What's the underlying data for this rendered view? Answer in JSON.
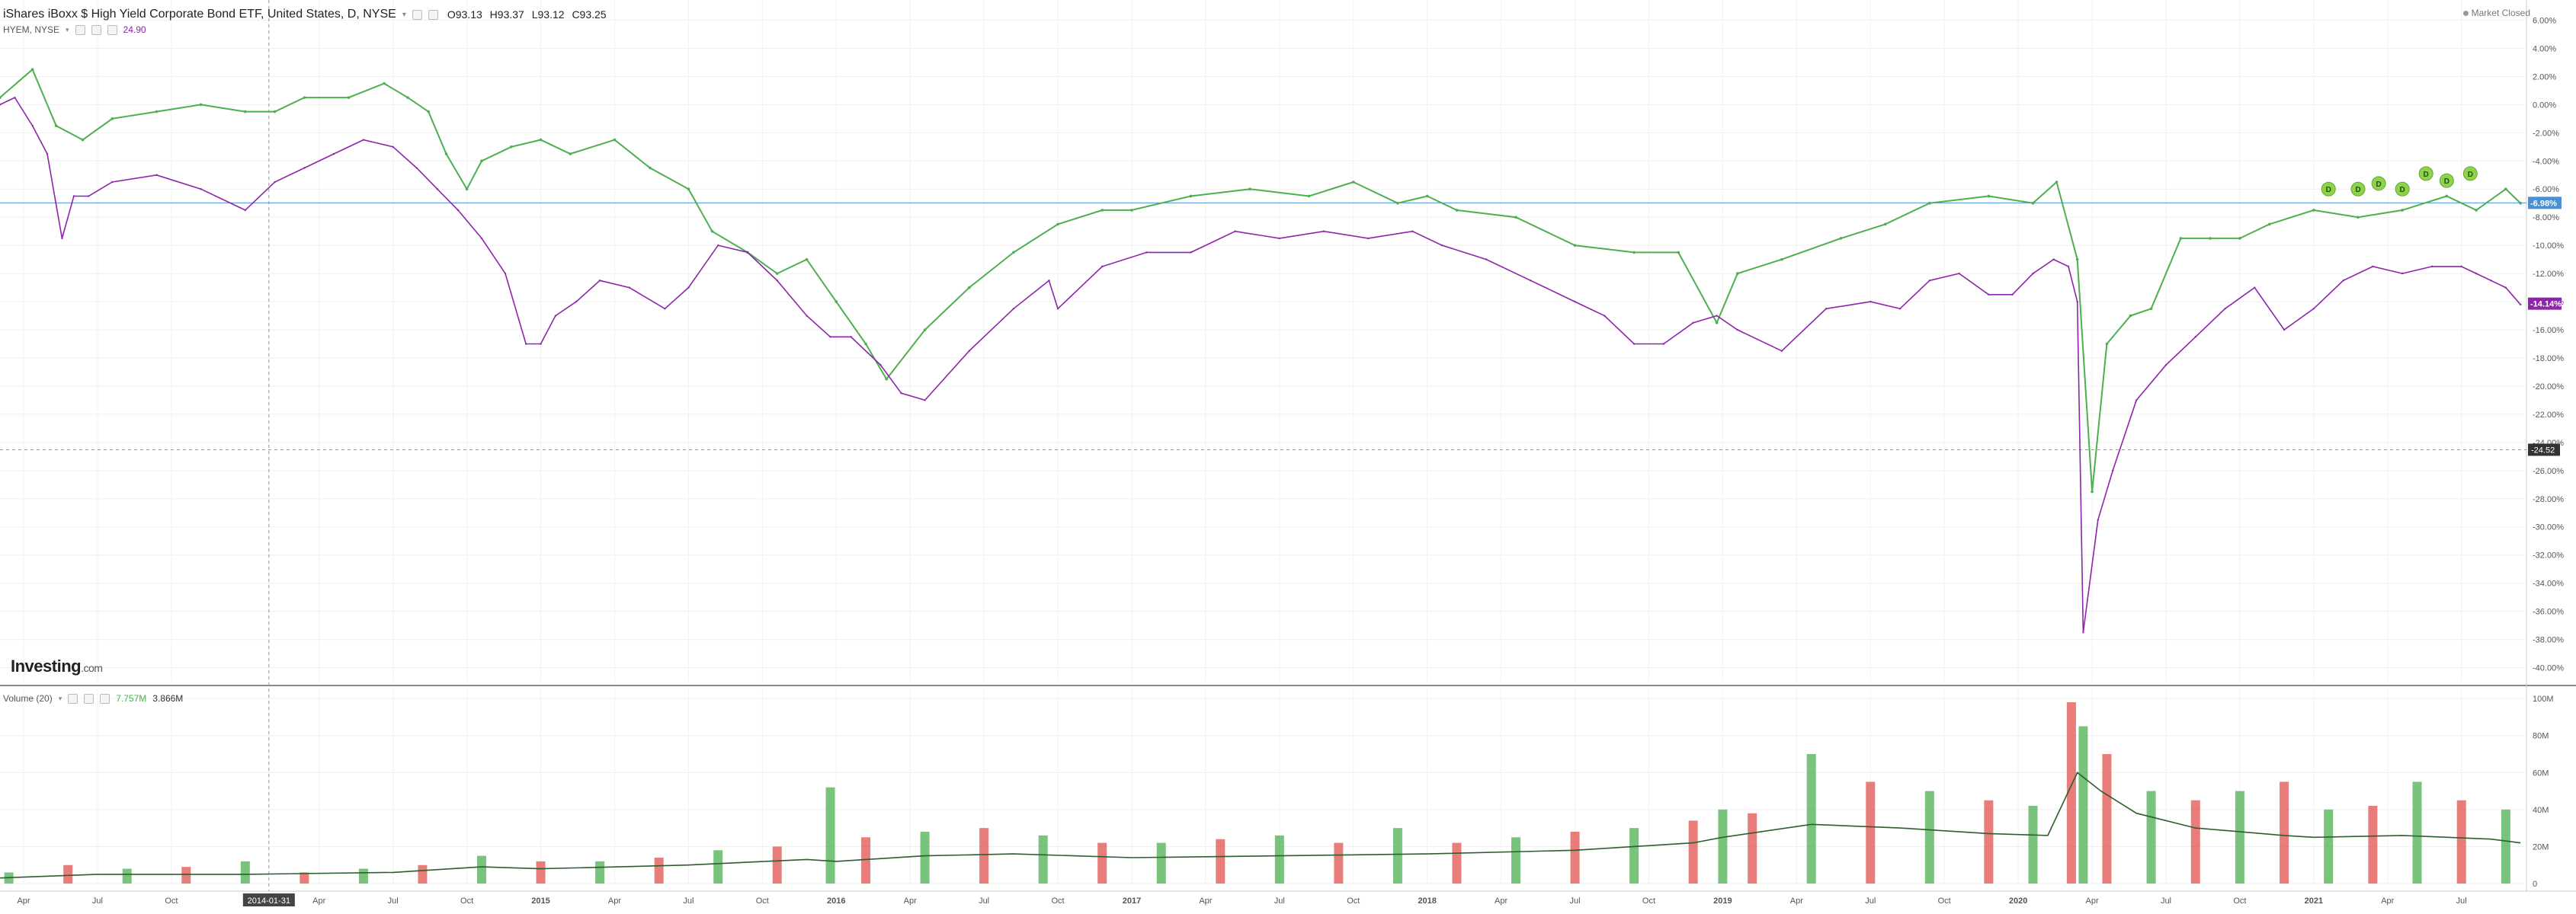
{
  "header": {
    "title": "iShares iBoxx $ High Yield Corporate Bond ETF, United States, D, NYSE",
    "ohlc": {
      "open": "O93.13",
      "high": "H93.37",
      "low": "L93.12",
      "close": "C93.25"
    },
    "compare_label": "HYEM, NYSE",
    "compare_value": "24.90",
    "market_status": "Market Closed"
  },
  "volume_legend": {
    "label": "Volume (20)",
    "value1": "7.757M",
    "value2": "3.866M"
  },
  "logo": {
    "brand": "Investing",
    "suffix": ".com"
  },
  "crosshair": {
    "date_label": "2014-01-31",
    "price_label": "-24.52"
  },
  "colors": {
    "up": "#4caf50",
    "down": "#e0524d",
    "compare": "#8e24aa",
    "hline": "#4b8fd4",
    "dividend": "#8bd34a",
    "ma": "#2e5e2e"
  },
  "chart_data": [
    {
      "type": "line",
      "title": "iShares iBoxx $ High Yield Corporate Bond ETF, United States, D, NYSE",
      "ylabel": "",
      "ylim": [
        -41,
        7
      ],
      "y_ticks": [
        "6.00%",
        "4.00%",
        "2.00%",
        "0.00%",
        "-2.00%",
        "-4.00%",
        "-6.00%",
        "-8.00%",
        "-10.00%",
        "-12.00%",
        "-14.00%",
        "-16.00%",
        "-18.00%",
        "-20.00%",
        "-22.00%",
        "-24.00%",
        "-26.00%",
        "-28.00%",
        "-30.00%",
        "-32.00%",
        "-34.00%",
        "-36.00%",
        "-38.00%",
        "-40.00%"
      ],
      "y_tick_values": [
        6,
        4,
        2,
        0,
        -2,
        -4,
        -6,
        -8,
        -10,
        -12,
        -14,
        -16,
        -18,
        -20,
        -22,
        -24,
        -26,
        -28,
        -30,
        -32,
        -34,
        -36,
        -38,
        -40
      ],
      "x_ticks": [
        "Apr",
        "Jul",
        "Oct",
        "2014-01-31",
        "Apr",
        "Jul",
        "Oct",
        "2015",
        "Apr",
        "Jul",
        "Oct",
        "2016",
        "Apr",
        "Jul",
        "Oct",
        "2017",
        "Apr",
        "Jul",
        "Oct",
        "2018",
        "Apr",
        "Jul",
        "Oct",
        "2019",
        "Apr",
        "Jul",
        "Oct",
        "2020",
        "Apr",
        "Jul",
        "Oct",
        "2021",
        "Apr",
        "Jul"
      ],
      "x_tick_values": [
        2013.25,
        2013.5,
        2013.75,
        2014.08,
        2014.25,
        2014.5,
        2014.75,
        2015,
        2015.25,
        2015.5,
        2015.75,
        2016,
        2016.25,
        2016.5,
        2016.75,
        2017,
        2017.25,
        2017.5,
        2017.75,
        2018,
        2018.25,
        2018.5,
        2018.75,
        2019,
        2019.25,
        2019.5,
        2019.75,
        2020,
        2020.25,
        2020.5,
        2020.75,
        2021,
        2021.25,
        2021.5
      ],
      "xlim": [
        2013.17,
        2021.72
      ],
      "badges": [
        {
          "label": "-6.98%",
          "value": -6.98,
          "color": "#4b8fd4"
        },
        {
          "label": "-14.14%",
          "value": -14.14,
          "color": "#8e24aa"
        }
      ],
      "series": [
        {
          "name": "iShares iBoxx $ High Yield Corporate Bond ETF",
          "color": "#4caf50",
          "x": [
            2013.17,
            2013.28,
            2013.36,
            2013.45,
            2013.55,
            2013.7,
            2013.85,
            2014.0,
            2014.1,
            2014.2,
            2014.35,
            2014.47,
            2014.55,
            2014.62,
            2014.68,
            2014.75,
            2014.8,
            2014.9,
            2015.0,
            2015.1,
            2015.25,
            2015.37,
            2015.5,
            2015.58,
            2015.7,
            2015.8,
            2015.9,
            2016.0,
            2016.1,
            2016.17,
            2016.3,
            2016.45,
            2016.6,
            2016.75,
            2016.9,
            2017.0,
            2017.2,
            2017.4,
            2017.6,
            2017.75,
            2017.9,
            2018.0,
            2018.1,
            2018.3,
            2018.5,
            2018.7,
            2018.85,
            2018.98,
            2019.05,
            2019.2,
            2019.4,
            2019.55,
            2019.7,
            2019.9,
            2020.05,
            2020.13,
            2020.2,
            2020.25,
            2020.3,
            2020.38,
            2020.45,
            2020.55,
            2020.65,
            2020.75,
            2020.85,
            2021.0,
            2021.15,
            2021.3,
            2021.45,
            2021.55,
            2021.65,
            2021.7
          ],
          "y": [
            0.5,
            2.5,
            -1.5,
            -2.5,
            -1.0,
            -0.5,
            0.0,
            -0.5,
            -0.5,
            0.5,
            0.5,
            1.5,
            0.5,
            -0.5,
            -3.5,
            -6.0,
            -4.0,
            -3.0,
            -2.5,
            -3.5,
            -2.5,
            -4.5,
            -6.0,
            -9.0,
            -10.5,
            -12.0,
            -11.0,
            -14.0,
            -17.0,
            -19.5,
            -16.0,
            -13.0,
            -10.5,
            -8.5,
            -7.5,
            -7.5,
            -6.5,
            -6.0,
            -6.5,
            -5.5,
            -7.0,
            -6.5,
            -7.5,
            -8.0,
            -10.0,
            -10.5,
            -10.5,
            -15.5,
            -12.0,
            -11.0,
            -9.5,
            -8.5,
            -7.0,
            -6.5,
            -7.0,
            -5.5,
            -11.0,
            -27.5,
            -17.0,
            -15.0,
            -14.5,
            -9.5,
            -9.5,
            -9.5,
            -8.5,
            -7.5,
            -8.0,
            -7.5,
            -6.5,
            -7.5,
            -6.0,
            -7.0
          ]
        },
        {
          "name": "HYEM, NYSE",
          "color": "#8e24aa",
          "x": [
            2013.17,
            2013.22,
            2013.28,
            2013.33,
            2013.38,
            2013.42,
            2013.47,
            2013.55,
            2013.7,
            2013.85,
            2014.0,
            2014.1,
            2014.2,
            2014.3,
            2014.4,
            2014.5,
            2014.58,
            2014.65,
            2014.72,
            2014.8,
            2014.88,
            2014.95,
            2015.0,
            2015.05,
            2015.12,
            2015.2,
            2015.3,
            2015.42,
            2015.5,
            2015.6,
            2015.7,
            2015.8,
            2015.9,
            2015.98,
            2016.05,
            2016.15,
            2016.22,
            2016.3,
            2016.45,
            2016.6,
            2016.72,
            2016.75,
            2016.9,
            2017.05,
            2017.2,
            2017.35,
            2017.5,
            2017.65,
            2017.8,
            2017.95,
            2018.05,
            2018.2,
            2018.35,
            2018.5,
            2018.6,
            2018.7,
            2018.8,
            2018.9,
            2018.98,
            2019.05,
            2019.2,
            2019.35,
            2019.5,
            2019.6,
            2019.7,
            2019.8,
            2019.9,
            2019.98,
            2020.05,
            2020.12,
            2020.17,
            2020.2,
            2020.22,
            2020.27,
            2020.32,
            2020.4,
            2020.5,
            2020.6,
            2020.7,
            2020.8,
            2020.9,
            2021.0,
            2021.1,
            2021.2,
            2021.3,
            2021.4,
            2021.5,
            2021.55,
            2021.6,
            2021.65,
            2021.7
          ],
          "y": [
            0.0,
            0.5,
            -1.5,
            -3.5,
            -9.5,
            -6.5,
            -6.5,
            -5.5,
            -5.0,
            -6.0,
            -7.5,
            -5.5,
            -4.5,
            -3.5,
            -2.5,
            -3.0,
            -4.5,
            -6.0,
            -7.5,
            -9.5,
            -12.0,
            -17.0,
            -17.0,
            -15.0,
            -14.0,
            -12.5,
            -13.0,
            -14.5,
            -13.0,
            -10.0,
            -10.5,
            -12.5,
            -15.0,
            -16.5,
            -16.5,
            -18.5,
            -20.5,
            -21.0,
            -17.5,
            -14.5,
            -12.5,
            -14.5,
            -11.5,
            -10.5,
            -10.5,
            -9.0,
            -9.5,
            -9.0,
            -9.5,
            -9.0,
            -10.0,
            -11.0,
            -12.5,
            -14.0,
            -15.0,
            -17.0,
            -17.0,
            -15.5,
            -15.0,
            -16.0,
            -17.5,
            -14.5,
            -14.0,
            -14.5,
            -12.5,
            -12.0,
            -13.5,
            -13.5,
            -12.0,
            -11.0,
            -11.5,
            -14.0,
            -37.5,
            -29.5,
            -26.0,
            -21.0,
            -18.5,
            -16.5,
            -14.5,
            -13.0,
            -16.0,
            -14.5,
            -12.5,
            -11.5,
            -12.0,
            -11.5,
            -11.5,
            -12.0,
            -12.5,
            -13.0,
            -14.2
          ]
        }
      ],
      "dividend_markers": {
        "label": "D",
        "x": [
          2021.05,
          2021.15,
          2021.22,
          2021.3,
          2021.38,
          2021.45,
          2021.53
        ],
        "y": [
          -6.0,
          -6.0,
          -5.6,
          -6.0,
          -4.9,
          -5.4,
          -4.9
        ]
      }
    },
    {
      "type": "bar",
      "title": "Volume (20)",
      "ylim": [
        0,
        105
      ],
      "y_ticks": [
        "100M",
        "80M",
        "60M",
        "40M",
        "20M",
        "0"
      ],
      "y_tick_values": [
        100,
        80,
        60,
        40,
        20,
        0
      ],
      "series": [
        {
          "name": "Volume (20)",
          "type": "line",
          "color": "#2e5e2e",
          "x": [
            2013.17,
            2013.5,
            2014.0,
            2014.5,
            2014.8,
            2015.0,
            2015.5,
            2015.9,
            2016.0,
            2016.3,
            2016.6,
            2017.0,
            2017.5,
            2018.0,
            2018.5,
            2018.9,
            2019.0,
            2019.3,
            2019.6,
            2019.9,
            2020.1,
            2020.2,
            2020.28,
            2020.4,
            2020.6,
            2020.9,
            2021.0,
            2021.3,
            2021.6,
            2021.7
          ],
          "y": [
            3,
            5,
            5,
            6,
            9,
            8,
            10,
            13,
            12,
            15,
            16,
            14,
            15,
            16,
            18,
            22,
            25,
            32,
            30,
            27,
            26,
            60,
            50,
            38,
            30,
            26,
            25,
            26,
            24,
            22
          ]
        },
        {
          "name": "Volume bars",
          "type": "bar",
          "x": [
            2013.2,
            2013.4,
            2013.6,
            2013.8,
            2014.0,
            2014.2,
            2014.4,
            2014.6,
            2014.8,
            2015.0,
            2015.2,
            2015.4,
            2015.6,
            2015.8,
            2015.98,
            2016.1,
            2016.3,
            2016.5,
            2016.7,
            2016.9,
            2017.1,
            2017.3,
            2017.5,
            2017.7,
            2017.9,
            2018.1,
            2018.3,
            2018.5,
            2018.7,
            2018.9,
            2019.0,
            2019.1,
            2019.3,
            2019.5,
            2019.7,
            2019.9,
            2020.05,
            2020.18,
            2020.22,
            2020.3,
            2020.45,
            2020.6,
            2020.75,
            2020.9,
            2021.05,
            2021.2,
            2021.35,
            2021.5,
            2021.65
          ],
          "y": [
            6,
            10,
            8,
            9,
            12,
            6,
            8,
            10,
            15,
            12,
            12,
            14,
            18,
            20,
            52,
            25,
            28,
            30,
            26,
            22,
            22,
            24,
            26,
            22,
            30,
            22,
            25,
            28,
            30,
            34,
            40,
            38,
            70,
            55,
            50,
            45,
            42,
            98,
            85,
            70,
            50,
            45,
            50,
            55,
            40,
            42,
            55,
            45,
            40
          ]
        }
      ]
    }
  ]
}
